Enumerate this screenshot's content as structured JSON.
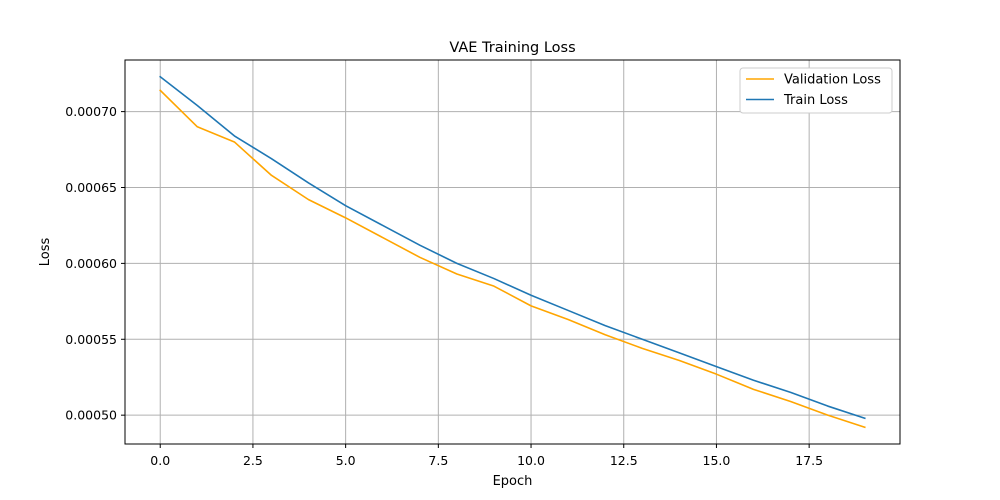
{
  "chart_data": {
    "type": "line",
    "title": "VAE Training Loss",
    "xlabel": "Epoch",
    "ylabel": "Loss",
    "xlim": [
      -0.95,
      19.95
    ],
    "ylim": [
      0.000481,
      0.000734
    ],
    "xticks": [
      0.0,
      2.5,
      5.0,
      7.5,
      10.0,
      12.5,
      15.0,
      17.5
    ],
    "xtick_labels": [
      "0.0",
      "2.5",
      "5.0",
      "7.5",
      "10.0",
      "12.5",
      "15.0",
      "17.5"
    ],
    "yticks": [
      0.0005,
      0.00055,
      0.0006,
      0.00065,
      0.0007
    ],
    "ytick_labels": [
      "0.00050",
      "0.00055",
      "0.00060",
      "0.00065",
      "0.00070"
    ],
    "grid": true,
    "legend_position": "top-right",
    "x": [
      0,
      1,
      2,
      3,
      4,
      5,
      6,
      7,
      8,
      9,
      10,
      11,
      12,
      13,
      14,
      15,
      16,
      17,
      18,
      19
    ],
    "series": [
      {
        "name": "Validation Loss",
        "color": "#ffa500",
        "values": [
          0.000714,
          0.00069,
          0.00068,
          0.000658,
          0.000642,
          0.00063,
          0.000617,
          0.000604,
          0.000593,
          0.000585,
          0.000572,
          0.000563,
          0.000553,
          0.000544,
          0.000536,
          0.000527,
          0.000517,
          0.000509,
          0.0005,
          0.000492
        ]
      },
      {
        "name": "Train Loss",
        "color": "#1f77b4",
        "values": [
          0.000723,
          0.000704,
          0.000684,
          0.000669,
          0.000653,
          0.000638,
          0.000625,
          0.000612,
          0.0006,
          0.00059,
          0.000579,
          0.000569,
          0.000559,
          0.00055,
          0.000541,
          0.000532,
          0.000523,
          0.000515,
          0.000506,
          0.000498
        ]
      }
    ]
  }
}
